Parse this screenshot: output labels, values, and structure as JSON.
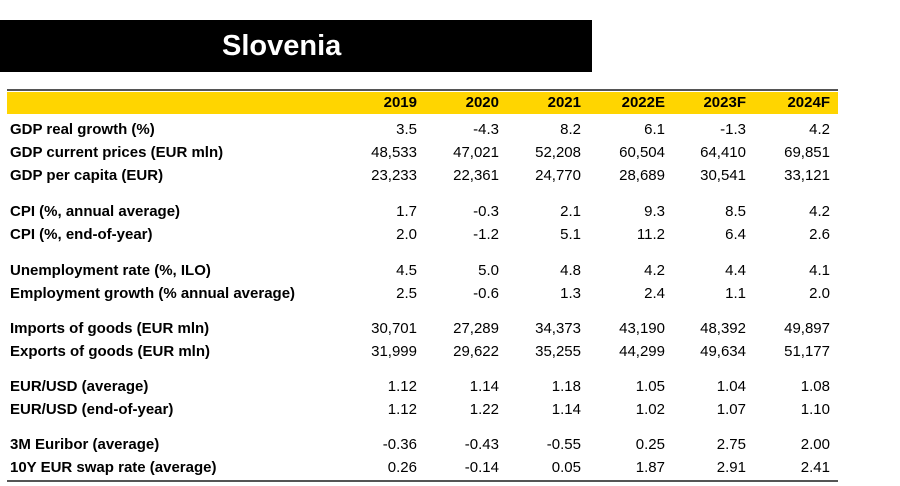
{
  "title": "Slovenia",
  "columns": [
    "2019",
    "2020",
    "2021",
    "2022E",
    "2023F",
    "2024F"
  ],
  "rows": [
    {
      "label": "GDP real growth (%)",
      "values": [
        "3.5",
        "-4.3",
        "8.2",
        "6.1",
        "-1.3",
        "4.2"
      ]
    },
    {
      "label": "GDP current prices (EUR mln)",
      "values": [
        "48,533",
        "47,021",
        "52,208",
        "60,504",
        "64,410",
        "69,851"
      ]
    },
    {
      "label": "GDP per capita (EUR)",
      "values": [
        "23,233",
        "22,361",
        "24,770",
        "28,689",
        "30,541",
        "33,121"
      ]
    },
    {
      "label": "CPI (%, annual average)",
      "values": [
        "1.7",
        "-0.3",
        "2.1",
        "9.3",
        "8.5",
        "4.2"
      ]
    },
    {
      "label": "CPI (%, end-of-year)",
      "values": [
        "2.0",
        "-1.2",
        "5.1",
        "11.2",
        "6.4",
        "2.6"
      ]
    },
    {
      "label": "Unemployment rate (%, ILO)",
      "values": [
        "4.5",
        "5.0",
        "4.8",
        "4.2",
        "4.4",
        "4.1"
      ]
    },
    {
      "label": "Employment growth (% annual average)",
      "values": [
        "2.5",
        "-0.6",
        "1.3",
        "2.4",
        "1.1",
        "2.0"
      ]
    },
    {
      "label": "Imports of goods (EUR mln)",
      "values": [
        "30,701",
        "27,289",
        "34,373",
        "43,190",
        "48,392",
        "49,897"
      ]
    },
    {
      "label": "Exports of goods (EUR mln)",
      "values": [
        "31,999",
        "29,622",
        "35,255",
        "44,299",
        "49,634",
        "51,177"
      ]
    },
    {
      "label": "EUR/USD (average)",
      "values": [
        "1.12",
        "1.14",
        "1.18",
        "1.05",
        "1.04",
        "1.08"
      ]
    },
    {
      "label": "EUR/USD (end-of-year)",
      "values": [
        "1.12",
        "1.22",
        "1.14",
        "1.02",
        "1.07",
        "1.10"
      ]
    },
    {
      "label": "3M Euribor (average)",
      "values": [
        "-0.36",
        "-0.43",
        "-0.55",
        "0.25",
        "2.75",
        "2.00"
      ]
    },
    {
      "label": "10Y EUR swap rate (average)",
      "values": [
        "0.26",
        "-0.14",
        "0.05",
        "1.87",
        "2.91",
        "2.41"
      ]
    }
  ],
  "colors": {
    "header_fill": "#ffd500",
    "title_bar": "#000000",
    "title_text": "#ffffff"
  }
}
